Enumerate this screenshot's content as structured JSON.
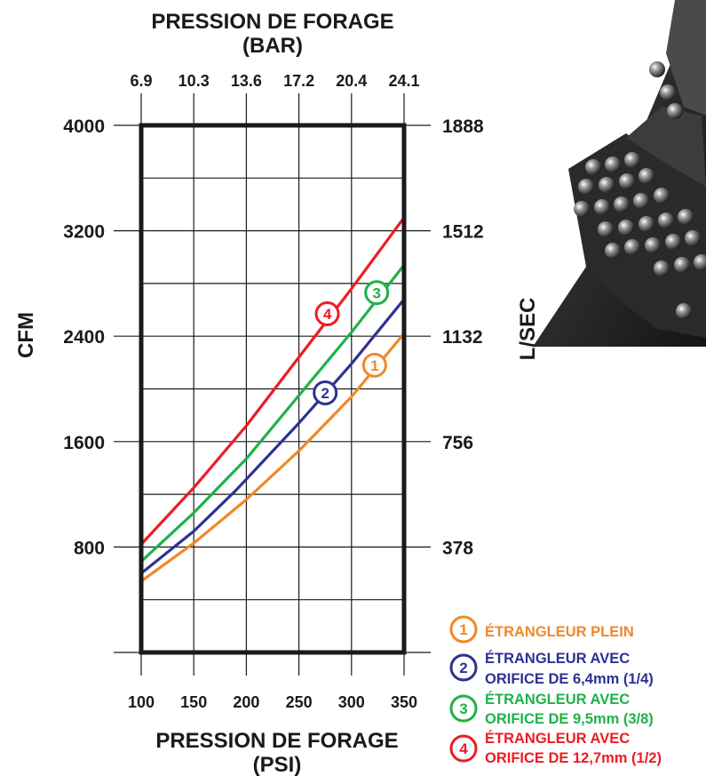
{
  "chart_data": {
    "type": "line",
    "top_title": [
      "PRESSION DE FORAGE",
      "(BAR)"
    ],
    "bottom_title": [
      "PRESSION DE FORAGE",
      "(PSI)"
    ],
    "ylabel_left": "CFM",
    "ylabel_right": "L/SEC",
    "x_ticks_psi": [
      "100",
      "150",
      "200",
      "250",
      "300",
      "350"
    ],
    "x_ticks_bar": [
      "6.9",
      "10.3",
      "13.6",
      "17.2",
      "20.4",
      "24.1"
    ],
    "y_ticks_cfm": [
      "800",
      "1600",
      "2400",
      "3200",
      "4000"
    ],
    "y_ticks_lsec": [
      "378",
      "756",
      "1132",
      "1512",
      "1888"
    ],
    "xlim": [
      100,
      350
    ],
    "ylim": [
      0,
      4000
    ],
    "series": [
      {
        "name": "ÉTRANGLEUR PLEIN",
        "marker": "1",
        "color": "#f0882a",
        "x": [
          100,
          150,
          200,
          250,
          300,
          350
        ],
        "y": [
          540,
          830,
          1160,
          1530,
          1940,
          2420
        ]
      },
      {
        "name": "ÉTRANGLEUR AVEC ORIFICE DE 6,4mm (1/4)",
        "marker": "2",
        "color": "#2e3192",
        "x": [
          100,
          150,
          190,
          250,
          300,
          350
        ],
        "y": [
          600,
          920,
          1230,
          1740,
          2190,
          2680
        ]
      },
      {
        "name": "ÉTRANGLEUR AVEC ORIFICE DE 9,5mm (3/8)",
        "marker": "3",
        "color": "#1fb24a",
        "x": [
          100,
          150,
          200,
          250,
          300,
          350
        ],
        "y": [
          690,
          1060,
          1470,
          1950,
          2430,
          2940
        ]
      },
      {
        "name": "ÉTRANGLEUR AVEC ORIFICE DE 12,7mm (1/2)",
        "marker": "4",
        "color": "#ed1c24",
        "x": [
          100,
          150,
          200,
          250,
          300,
          350
        ],
        "y": [
          820,
          1250,
          1720,
          2240,
          2760,
          3300
        ]
      }
    ],
    "markers": [
      {
        "label": "1",
        "x": 322,
        "y": 2180,
        "color": "#f0882a"
      },
      {
        "label": "2",
        "x": 275,
        "y": 1970,
        "color": "#2e3192"
      },
      {
        "label": "3",
        "x": 324,
        "y": 2730,
        "color": "#1fb24a"
      },
      {
        "label": "4",
        "x": 277,
        "y": 2570,
        "color": "#ed1c24"
      }
    ],
    "legend": [
      {
        "marker": "1",
        "lines": [
          "ÉTRANGLEUR PLEIN"
        ],
        "color": "#f0882a"
      },
      {
        "marker": "2",
        "lines": [
          "ÉTRANGLEUR AVEC",
          "ORIFICE DE 6,4mm (1/4)"
        ],
        "color": "#2e3192"
      },
      {
        "marker": "3",
        "lines": [
          "ÉTRANGLEUR AVEC",
          "ORIFICE DE 9,5mm (3/8)"
        ],
        "color": "#1fb24a"
      },
      {
        "marker": "4",
        "lines": [
          "ÉTRANGLEUR AVEC",
          "ORIFICE DE 12,7mm (1/2)"
        ],
        "color": "#ed1c24"
      }
    ],
    "grid": true,
    "legend_position": "bottom-right"
  },
  "photo": {
    "subject": "drill-bit-photo"
  }
}
